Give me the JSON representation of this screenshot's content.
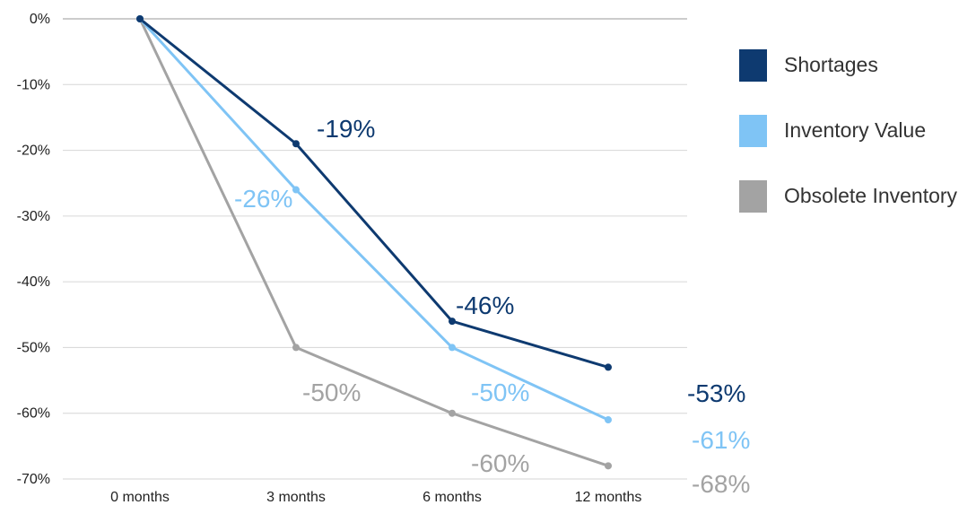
{
  "chart_data": {
    "type": "line",
    "categories": [
      "0 months",
      "3 months",
      "6 months",
      "12 months"
    ],
    "ylim": [
      -70,
      0
    ],
    "yticks": [
      0,
      -10,
      -20,
      -30,
      -40,
      -50,
      -60,
      -70
    ],
    "ytick_labels": [
      "0%",
      "-10%",
      "-20%",
      "-30%",
      "-40%",
      "-50%",
      "-60%",
      "-70%"
    ],
    "grid": true,
    "legend_position": "right",
    "series": [
      {
        "name": "Shortages",
        "color": "#0E3A70",
        "values": [
          0,
          -19,
          -46,
          -53
        ],
        "labels": [
          "",
          "-19%",
          "-46%",
          "-53%"
        ]
      },
      {
        "name": "Inventory Value",
        "color": "#7FC4F5",
        "values": [
          0,
          -26,
          -50,
          -61
        ],
        "labels": [
          "",
          "-26%",
          "-50%",
          "-61%"
        ]
      },
      {
        "name": "Obsolete Inventory",
        "color": "#A3A3A3",
        "values": [
          0,
          -50,
          -60,
          -68
        ],
        "labels": [
          "",
          "-50%",
          "-60%",
          "-68%"
        ]
      }
    ]
  }
}
